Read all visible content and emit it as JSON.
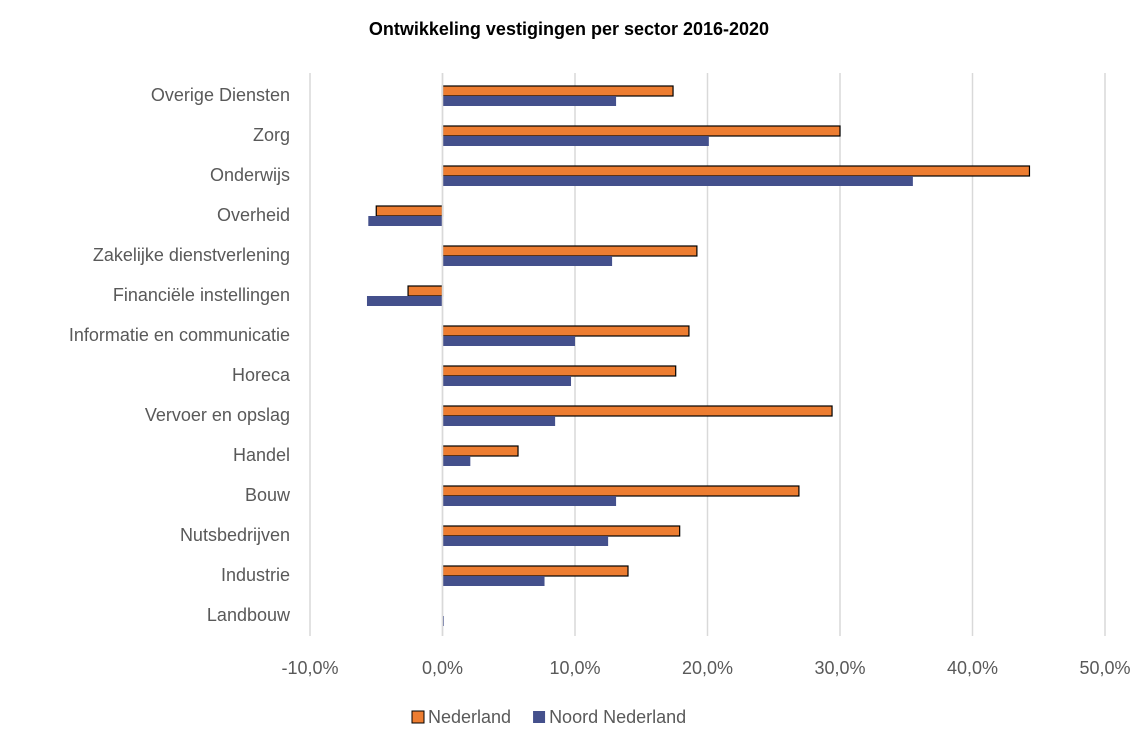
{
  "chart_data": {
    "type": "bar",
    "orientation": "horizontal",
    "title": "Ontwikkeling vestigingen per sector 2016-2020",
    "categories": [
      "Overige Diensten",
      "Zorg",
      "Onderwijs",
      "Overheid",
      "Zakelijke dienstverlening",
      "Financiële instellingen",
      "Informatie en communicatie",
      "Horeca",
      "Vervoer en opslag",
      "Handel",
      "Bouw",
      "Nutsbedrijven",
      "Industrie",
      "Landbouw"
    ],
    "series": [
      {
        "name": "Nederland",
        "color": "#ed7d31",
        "values": [
          17.4,
          30.0,
          44.3,
          -5.0,
          19.2,
          -2.6,
          18.6,
          17.6,
          29.4,
          5.7,
          26.9,
          17.9,
          14.0,
          0
        ]
      },
      {
        "name": "Noord Nederland",
        "color": "#44508c",
        "values": [
          13.1,
          20.1,
          35.5,
          -5.6,
          12.8,
          -5.7,
          10.0,
          9.7,
          8.5,
          2.1,
          13.1,
          12.5,
          7.7,
          0.1
        ]
      }
    ],
    "xlim": [
      -10,
      50
    ],
    "xticks": [
      {
        "value": -10,
        "label": "-10,0%"
      },
      {
        "value": 0,
        "label": "0,0%"
      },
      {
        "value": 10,
        "label": "10,0%"
      },
      {
        "value": 20,
        "label": "20,0%"
      },
      {
        "value": 30,
        "label": "30,0%"
      },
      {
        "value": 40,
        "label": "40,0%"
      },
      {
        "value": 50,
        "label": "50,0%"
      }
    ],
    "grid": true,
    "legend": "bottom"
  }
}
